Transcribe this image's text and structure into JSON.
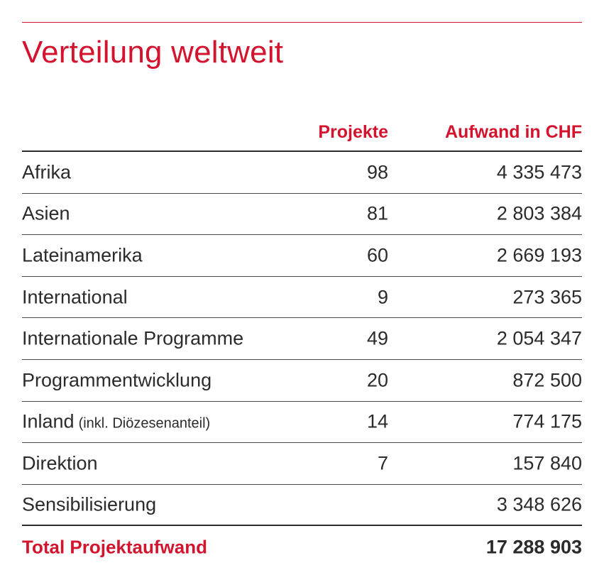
{
  "title": "Verteilung weltweit",
  "columns": {
    "projekte": "Projekte",
    "aufwand": "Aufwand in CHF"
  },
  "rows": [
    {
      "label": "Afrika",
      "note": "",
      "projekte": "98",
      "aufwand": "4 335 473"
    },
    {
      "label": "Asien",
      "note": "",
      "projekte": "81",
      "aufwand": "2 803 384"
    },
    {
      "label": "Lateinamerika",
      "note": "",
      "projekte": "60",
      "aufwand": "2 669 193"
    },
    {
      "label": "International",
      "note": "",
      "projekte": "9",
      "aufwand": "273 365"
    },
    {
      "label": "Internationale Programme",
      "note": "",
      "projekte": "49",
      "aufwand": "2 054 347"
    },
    {
      "label": "Programmentwicklung",
      "note": "",
      "projekte": "20",
      "aufwand": "872 500"
    },
    {
      "label": "Inland",
      "note": "(inkl. Diözesenanteil)",
      "projekte": "14",
      "aufwand": "774 175"
    },
    {
      "label": "Direktion",
      "note": "",
      "projekte": "7",
      "aufwand": "157 840"
    },
    {
      "label": "Sensibilisierung",
      "note": "",
      "projekte": "",
      "aufwand": "3 348 626"
    }
  ],
  "total": {
    "label": "Total Projektaufwand",
    "aufwand": "17 288 903"
  },
  "colors": {
    "accent": "#d4142e",
    "text": "#2b2b2b"
  }
}
